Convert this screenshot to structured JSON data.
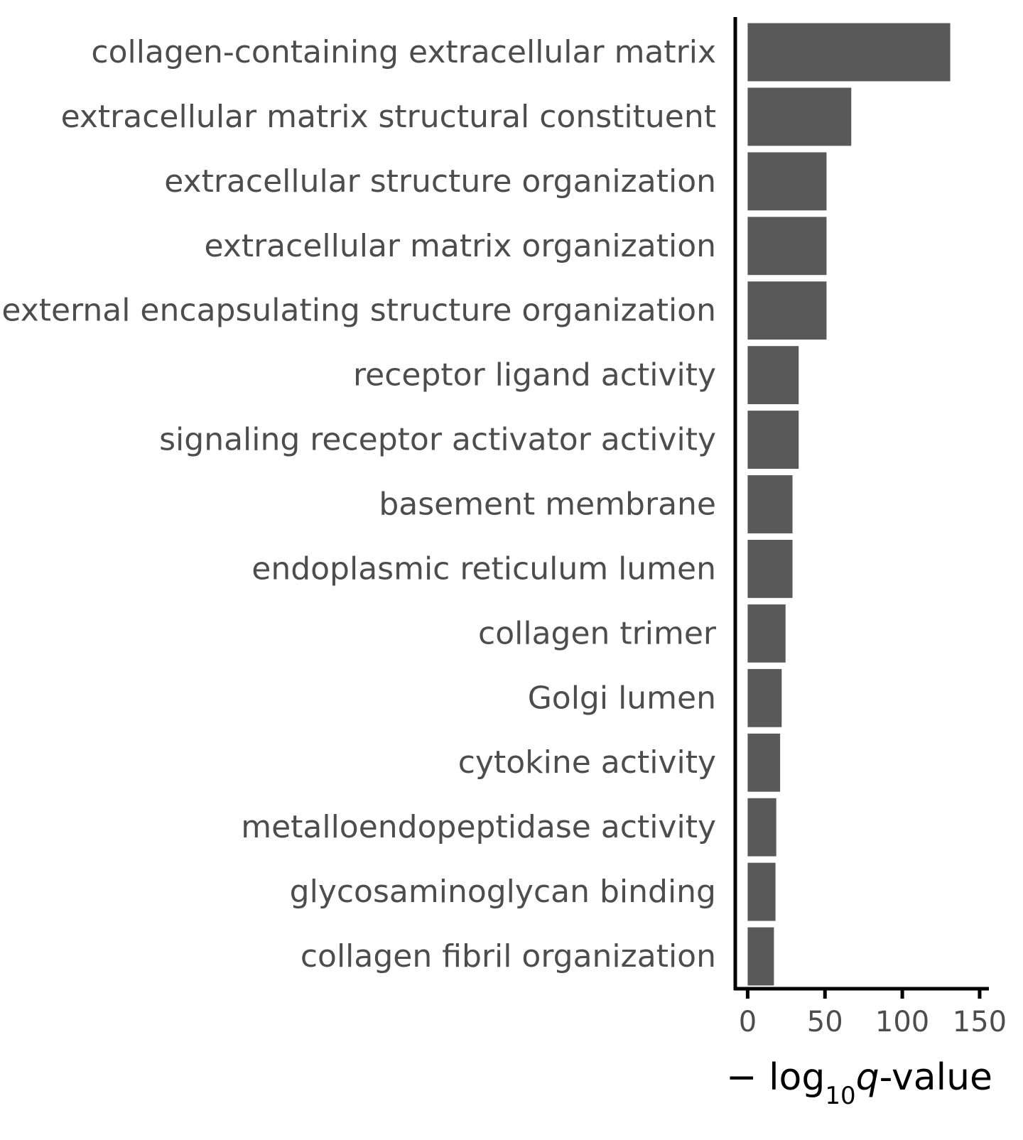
{
  "chart_data": {
    "type": "bar",
    "orientation": "horizontal",
    "categories": [
      "collagen-containing extracellular matrix",
      "extracellular matrix structural constituent",
      "extracellular structure organization",
      "extracellular matrix organization",
      "external encapsulating structure organization",
      "receptor ligand activity",
      "signaling receptor activator activity",
      "basement membrane",
      "endoplasmic reticulum lumen",
      "collagen trimer",
      "Golgi lumen",
      "cytokine activity",
      "metalloendopeptidase activity",
      "glycosaminoglycan binding",
      "collagen fibril organization"
    ],
    "values": [
      131,
      67,
      51,
      51,
      51,
      33,
      33,
      29,
      29,
      24.5,
      22,
      21,
      18.5,
      18,
      17
    ],
    "xlabel": {
      "prefix": "− log",
      "sub": "10",
      "italic": "q",
      "suffix": "-value"
    },
    "ylabel": "",
    "xlim": [
      -8,
      156
    ],
    "xticks": [
      0,
      50,
      100,
      150
    ],
    "bar_color": "#595959",
    "grid": false
  }
}
